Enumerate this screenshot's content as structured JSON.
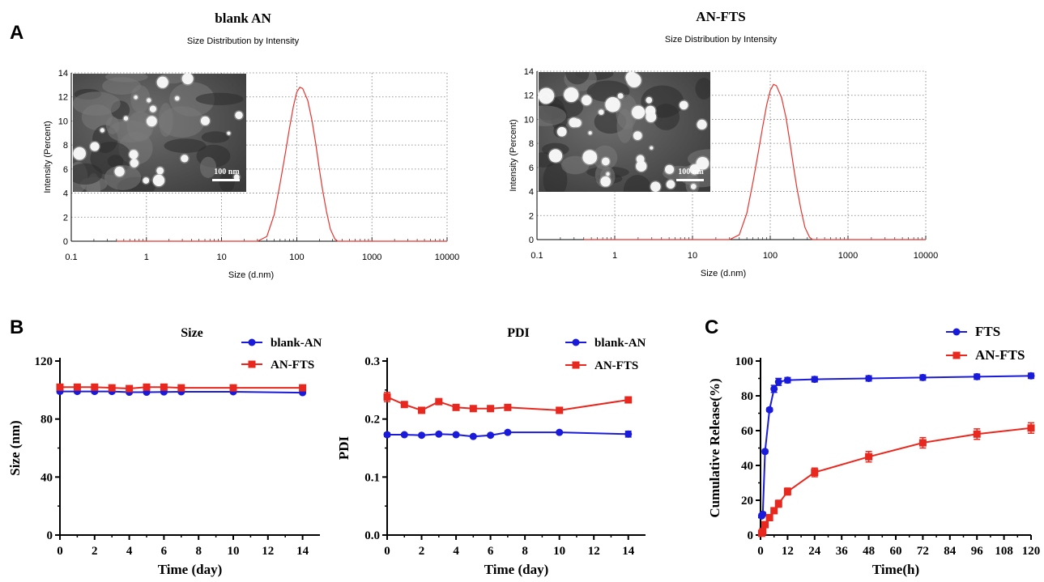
{
  "panels": {
    "A_label": "A",
    "B_label": "B",
    "C_label": "C"
  },
  "chart_data": [
    {
      "id": "dls_blank",
      "type": "line",
      "title": "blank AN",
      "subtitle": "Size Distribution by Intensity",
      "xlabel": "Size (d.nm)",
      "ylabel": "Intensity (Percent)",
      "xscale": "log",
      "xlim": [
        0.1,
        10000
      ],
      "ylim": [
        0,
        14
      ],
      "xticks": [
        "0.1",
        "1",
        "10",
        "100",
        "1000",
        "10000"
      ],
      "yticks": [
        "0",
        "2",
        "4",
        "6",
        "8",
        "10",
        "12",
        "14"
      ],
      "grid": true,
      "inset": {
        "content": "TEM micrograph",
        "scale_bar": "100 nm"
      },
      "series": [
        {
          "color": "#e8332f",
          "x": [
            0.4,
            30,
            40,
            50,
            60,
            70,
            80,
            90,
            100,
            110,
            120,
            140,
            160,
            180,
            200,
            220,
            250,
            280,
            320,
            350,
            10000
          ],
          "y": [
            0,
            0,
            0.4,
            2.2,
            4.8,
            7.2,
            9.4,
            11.2,
            12.4,
            12.8,
            12.7,
            11.7,
            10.0,
            8.0,
            6.0,
            4.3,
            2.4,
            1.0,
            0.2,
            0,
            0
          ]
        }
      ]
    },
    {
      "id": "dls_fts",
      "type": "line",
      "title": "AN-FTS",
      "subtitle": "Size Distribution by Intensity",
      "xlabel": "Size (d.nm)",
      "ylabel": "Intensity (Percent)",
      "xscale": "log",
      "xlim": [
        0.1,
        10000
      ],
      "ylim": [
        0,
        14
      ],
      "xticks": [
        "0.1",
        "1",
        "10",
        "100",
        "1000",
        "10000"
      ],
      "yticks": [
        "0",
        "2",
        "4",
        "6",
        "8",
        "10",
        "12",
        "14"
      ],
      "grid": true,
      "inset": {
        "content": "TEM micrograph",
        "scale_bar": "100 nm"
      },
      "series": [
        {
          "color": "#e8332f",
          "x": [
            0.4,
            30,
            40,
            50,
            60,
            70,
            80,
            90,
            100,
            110,
            120,
            140,
            160,
            180,
            200,
            220,
            250,
            280,
            320,
            350,
            10000
          ],
          "y": [
            0,
            0,
            0.4,
            2.2,
            4.8,
            7.2,
            9.4,
            11.2,
            12.4,
            12.9,
            12.8,
            11.8,
            10.1,
            8.0,
            6.0,
            4.3,
            2.4,
            1.0,
            0.2,
            0,
            0
          ]
        }
      ]
    },
    {
      "id": "size",
      "type": "line",
      "title": "Size",
      "xlabel": "Time (day)",
      "ylabel": "Size (nm)",
      "xlim": [
        0,
        15
      ],
      "ylim": [
        0,
        120
      ],
      "xticks": [
        0,
        2,
        4,
        6,
        8,
        10,
        12,
        14
      ],
      "yticks": [
        0,
        40,
        80,
        120
      ],
      "legend": "top-right",
      "x": [
        0,
        1,
        2,
        3,
        4,
        5,
        6,
        7,
        10,
        14
      ],
      "series": [
        {
          "name": "blank-AN",
          "color": "#1a1adb",
          "marker": "circle",
          "values": [
            99,
            99,
            99,
            99,
            98.5,
            98.5,
            98.7,
            98.8,
            98.8,
            98.2
          ],
          "errors": [
            1,
            1,
            1,
            1,
            1,
            1,
            1,
            1,
            1,
            1
          ]
        },
        {
          "name": "AN-FTS",
          "color": "#e8281e",
          "marker": "square",
          "values": [
            102,
            102,
            102,
            101.5,
            101,
            102,
            102,
            101.5,
            101.5,
            101.5
          ],
          "errors": [
            1,
            1,
            1,
            1,
            1,
            1,
            1,
            1,
            1,
            1
          ]
        }
      ]
    },
    {
      "id": "pdi",
      "type": "line",
      "title": "PDI",
      "xlabel": "Time (day)",
      "ylabel": "PDI",
      "xlim": [
        0,
        15
      ],
      "ylim": [
        0,
        0.3
      ],
      "xticks": [
        0,
        2,
        4,
        6,
        8,
        10,
        12,
        14
      ],
      "yticks": [
        "0.0",
        "0.1",
        "0.2",
        "0.3"
      ],
      "legend": "top-right",
      "x": [
        0,
        1,
        2,
        3,
        4,
        5,
        6,
        7,
        10,
        14
      ],
      "series": [
        {
          "name": "blank-AN",
          "color": "#1a1adb",
          "marker": "circle",
          "values": [
            0.173,
            0.173,
            0.172,
            0.174,
            0.173,
            0.17,
            0.172,
            0.177,
            0.177,
            0.174
          ],
          "errors": [
            0.003,
            0.002,
            0.002,
            0.002,
            0.002,
            0.002,
            0.002,
            0.002,
            0.002,
            0.005
          ]
        },
        {
          "name": "AN-FTS",
          "color": "#e8281e",
          "marker": "square",
          "values": [
            0.238,
            0.225,
            0.215,
            0.23,
            0.22,
            0.218,
            0.218,
            0.22,
            0.215,
            0.233
          ],
          "errors": [
            0.008,
            0.003,
            0.003,
            0.003,
            0.003,
            0.003,
            0.003,
            0.003,
            0.004,
            0.003
          ]
        }
      ]
    },
    {
      "id": "release",
      "type": "line",
      "title": "",
      "xlabel": "Time(h)",
      "ylabel": "Cumulative Release(%)",
      "xlim": [
        0,
        120
      ],
      "ylim": [
        0,
        100
      ],
      "xticks": [
        0,
        12,
        24,
        36,
        48,
        60,
        72,
        84,
        96,
        108,
        120
      ],
      "yticks": [
        0,
        20,
        40,
        60,
        80,
        100
      ],
      "legend": "top-right",
      "series": [
        {
          "name": "FTS",
          "color": "#1a1adb",
          "marker": "circle",
          "x": [
            0.5,
            1,
            2,
            4,
            6,
            8,
            12,
            24,
            48,
            72,
            96,
            120
          ],
          "values": [
            11,
            12,
            48,
            72,
            84,
            88,
            89,
            89.5,
            90,
            90.5,
            91,
            91.5
          ],
          "errors": [
            1,
            1,
            1,
            1,
            2,
            2,
            1.5,
            1.5,
            1.5,
            1.5,
            1.5,
            1.5
          ]
        },
        {
          "name": "AN-FTS",
          "color": "#e8281e",
          "marker": "square",
          "x": [
            0.5,
            1,
            2,
            4,
            6,
            8,
            12,
            24,
            48,
            72,
            96,
            120
          ],
          "values": [
            1,
            2,
            6,
            10,
            14,
            18,
            25,
            36,
            45,
            53,
            58,
            61.5
          ],
          "errors": [
            0.5,
            0.5,
            1,
            1,
            1.5,
            2,
            2,
            2.5,
            3,
            3,
            3,
            3
          ]
        }
      ]
    }
  ]
}
